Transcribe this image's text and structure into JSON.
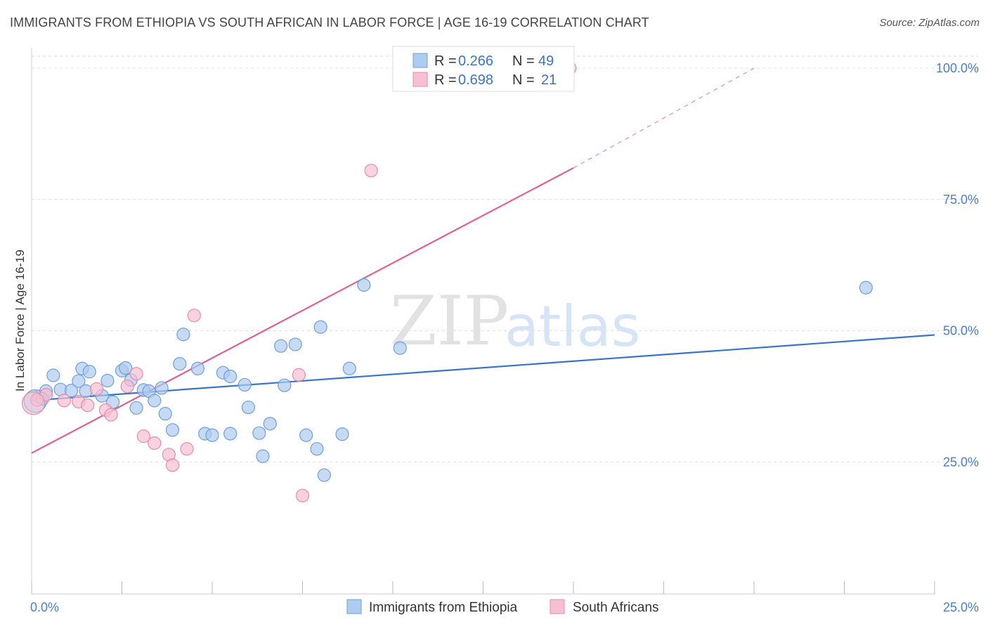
{
  "header": {
    "title": "IMMIGRANTS FROM ETHIOPIA VS SOUTH AFRICAN IN LABOR FORCE | AGE 16-19 CORRELATION CHART",
    "source": "Source: ZipAtlas.com"
  },
  "watermark": {
    "zip": "ZIP",
    "atlas": "atlas"
  },
  "legend_top": [
    {
      "r_label": "R =",
      "r_value": "0.266",
      "n_label": "N =",
      "n_value": "49"
    },
    {
      "r_label": "R =",
      "r_value": "0.698",
      "n_label": "N =",
      "n_value": "21"
    }
  ],
  "legend_bottom": [
    {
      "label": "Immigrants from Ethiopia"
    },
    {
      "label": "South Africans"
    }
  ],
  "colors": {
    "blue_fill": "#aecbf0",
    "blue_stroke": "#6f9fd8",
    "blue_line": "#3a74c8",
    "pink_fill": "#f7bfd2",
    "pink_stroke": "#e88aaa",
    "pink_line": "#e06090",
    "grid": "#dddddd",
    "axis_text": "#4a7fc4"
  },
  "chart_data": {
    "type": "scatter",
    "title": "IMMIGRANTS FROM ETHIOPIA VS SOUTH AFRICAN IN LABOR FORCE | AGE 16-19 CORRELATION CHART",
    "xlabel": "",
    "ylabel": "In Labor Force | Age 16-19",
    "xlim": [
      0,
      25
    ],
    "ylim": [
      0,
      100
    ],
    "x_tick_labels": [
      "0.0%",
      "25.0%"
    ],
    "y_ticks": [
      25,
      50,
      75,
      100
    ],
    "y_tick_labels": [
      "25.0%",
      "50.0%",
      "75.0%",
      "100.0%"
    ],
    "grid": true,
    "series": [
      {
        "name": "Immigrants from Ethiopia",
        "color": "#aecbf0",
        "points": [
          [
            0.2,
            37.4
          ],
          [
            0.4,
            38.5
          ],
          [
            0.6,
            41.5
          ],
          [
            0.8,
            38.8
          ],
          [
            1.1,
            38.6
          ],
          [
            1.3,
            40.4
          ],
          [
            1.5,
            38.5
          ],
          [
            1.4,
            42.8
          ],
          [
            1.6,
            42.2
          ],
          [
            1.95,
            37.6
          ],
          [
            2.1,
            40.5
          ],
          [
            2.25,
            36.4
          ],
          [
            2.5,
            42.4
          ],
          [
            2.6,
            42.9
          ],
          [
            2.75,
            40.6
          ],
          [
            2.9,
            35.3
          ],
          [
            3.1,
            38.7
          ],
          [
            3.25,
            38.5
          ],
          [
            3.4,
            36.7
          ],
          [
            3.6,
            39.1
          ],
          [
            3.7,
            34.2
          ],
          [
            3.9,
            31.1
          ],
          [
            4.1,
            43.7
          ],
          [
            4.2,
            49.3
          ],
          [
            4.6,
            42.8
          ],
          [
            4.8,
            30.4
          ],
          [
            5.0,
            30.1
          ],
          [
            5.3,
            42.0
          ],
          [
            5.5,
            30.4
          ],
          [
            5.5,
            41.3
          ],
          [
            5.9,
            39.7
          ],
          [
            6.0,
            35.4
          ],
          [
            6.3,
            30.5
          ],
          [
            6.4,
            26.1
          ],
          [
            6.6,
            32.3
          ],
          [
            6.9,
            47.1
          ],
          [
            7.0,
            39.6
          ],
          [
            7.3,
            47.4
          ],
          [
            7.6,
            30.1
          ],
          [
            7.9,
            27.5
          ],
          [
            8.0,
            50.7
          ],
          [
            8.1,
            22.5
          ],
          [
            8.6,
            30.3
          ],
          [
            8.8,
            42.8
          ],
          [
            9.2,
            58.7
          ],
          [
            10.2,
            46.7
          ],
          [
            23.1,
            58.2
          ],
          [
            0.1,
            36.6
          ],
          [
            0.3,
            37.0
          ]
        ]
      },
      {
        "name": "South Africans",
        "color": "#f7bfd2",
        "points": [
          [
            0.15,
            36.8
          ],
          [
            0.4,
            37.8
          ],
          [
            0.9,
            36.7
          ],
          [
            1.3,
            36.5
          ],
          [
            1.55,
            35.8
          ],
          [
            1.8,
            38.9
          ],
          [
            2.05,
            34.9
          ],
          [
            2.2,
            34.0
          ],
          [
            2.65,
            39.4
          ],
          [
            2.9,
            41.8
          ],
          [
            3.1,
            29.9
          ],
          [
            3.4,
            28.6
          ],
          [
            3.8,
            26.4
          ],
          [
            3.9,
            24.4
          ],
          [
            4.3,
            27.5
          ],
          [
            4.5,
            52.9
          ],
          [
            7.4,
            41.6
          ],
          [
            7.5,
            18.6
          ],
          [
            9.4,
            80.5
          ],
          [
            14.9,
            100.0
          ],
          [
            0.05,
            36.2
          ]
        ]
      }
    ],
    "trendlines": [
      {
        "series": "Immigrants from Ethiopia",
        "x": [
          0,
          25
        ],
        "y": [
          36.7,
          49.2
        ],
        "dashed_extension": false
      },
      {
        "series": "South Africans",
        "x_solid": [
          0,
          15
        ],
        "y_solid": [
          26.7,
          81.0
        ],
        "x_dashed": [
          15,
          20
        ],
        "y_dashed": [
          81.0,
          100.0
        ]
      }
    ]
  }
}
